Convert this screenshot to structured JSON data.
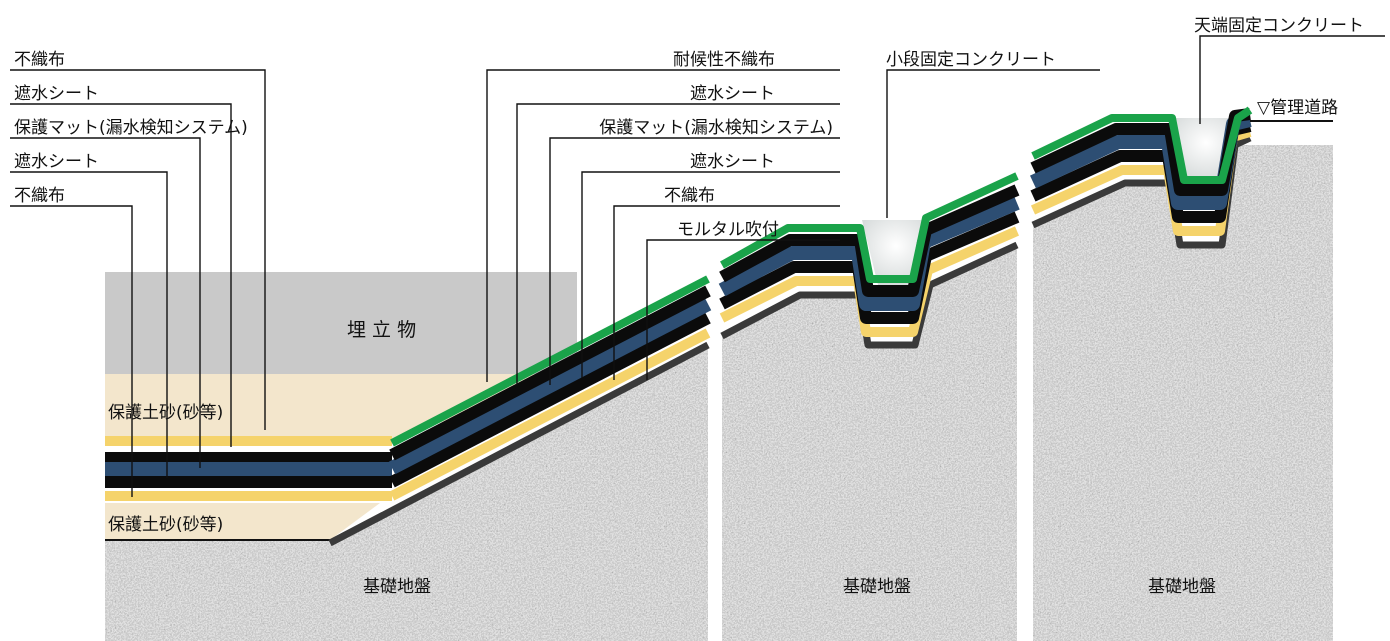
{
  "labels_left": [
    "不織布",
    "遮水シート",
    "保護マット(漏水検知システム)",
    "遮水シート",
    "不織布"
  ],
  "labels_slope": [
    "耐候性不織布",
    "遮水シート",
    "保護マット(漏水検知システム)",
    "遮水シート",
    "不織布",
    "モルタル吹付"
  ],
  "label_berm_concrete": "小段固定コンクリート",
  "label_crest_concrete": "天端固定コンクリート",
  "label_road": "▽管理道路",
  "label_fill": "埋 立 物",
  "label_protect_top": "保護土砂(砂等)",
  "label_protect_bottom": "保護土砂(砂等)",
  "label_foundation": [
    "基礎地盤",
    "基礎地盤",
    "基礎地盤"
  ],
  "colors": {
    "weathering_nonwoven": "#1aa34a",
    "sheet_black": "#0b0b0b",
    "protection_mat": "#2d4e73",
    "nonwoven_yellow": "#f5d36b",
    "mortar": "#3a3a3a",
    "fill_gray": "#c9c9c9",
    "sand": "#f3e6cc",
    "ground": "#9a9a9a"
  }
}
